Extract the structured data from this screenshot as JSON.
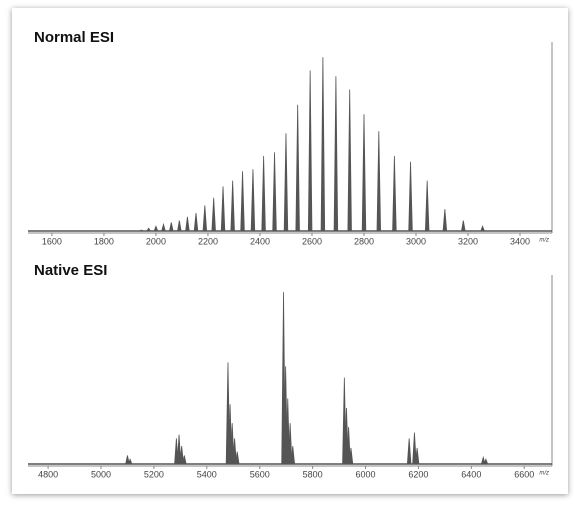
{
  "chart_data": [
    {
      "type": "stem",
      "title": "Normal ESI",
      "xlabel": "m/z",
      "color": "#555555",
      "x": [
        1944,
        1972,
        2000,
        2029,
        2059,
        2090,
        2121,
        2154,
        2188,
        2222,
        2258,
        2295,
        2333,
        2373,
        2414,
        2456,
        2500,
        2545,
        2593,
        2642,
        2692,
        2745,
        2800,
        2857,
        2917,
        2979,
        3043,
        3111,
        3182,
        3256
      ],
      "values": [
        1,
        2,
        3,
        4,
        5,
        6,
        8,
        10,
        14,
        18,
        24,
        27,
        32,
        33,
        40,
        42,
        52,
        67,
        85,
        92,
        82,
        75,
        62,
        53,
        40,
        37,
        27,
        12,
        6,
        3
      ],
      "xlim": [
        1508,
        3523
      ],
      "xticks": [
        1600,
        1800,
        2000,
        2200,
        2400,
        2600,
        2800,
        3000,
        3200,
        3400
      ],
      "ylim": [
        0,
        100
      ]
    },
    {
      "type": "stem",
      "title": "Native ESI",
      "xlabel": "m/z",
      "color": "#555555",
      "x": [
        5100,
        5110,
        5285,
        5295,
        5305,
        5315,
        5480,
        5488,
        5496,
        5505,
        5515,
        5690,
        5698,
        5706,
        5715,
        5725,
        5920,
        5928,
        5936,
        5945,
        6165,
        6185,
        6195,
        6445,
        6455
      ],
      "values": [
        5,
        3,
        14,
        16,
        10,
        5,
        54,
        32,
        22,
        14,
        7,
        91,
        52,
        35,
        22,
        10,
        46,
        30,
        20,
        9,
        14,
        17,
        9,
        4,
        3
      ],
      "xlim": [
        4724,
        6705
      ],
      "xticks": [
        4800,
        5000,
        5200,
        5400,
        5600,
        5800,
        6000,
        6200,
        6400,
        6600
      ],
      "ylim": [
        0,
        100
      ]
    }
  ]
}
